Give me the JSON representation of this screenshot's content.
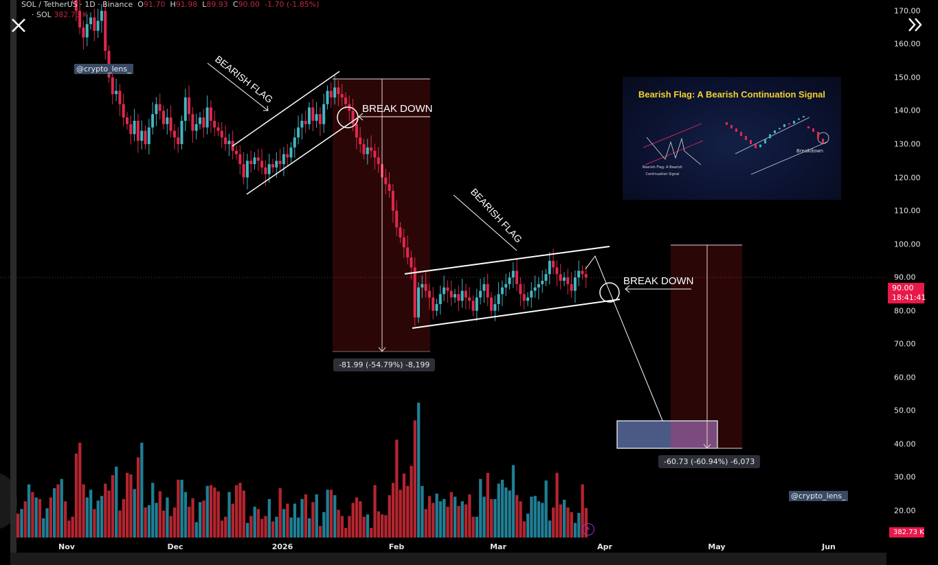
{
  "header": {
    "symbol": "SOL / TetherUS",
    "interval": "1D",
    "exchange": "Binance",
    "o_label": "O",
    "o": "91.70",
    "h_label": "H",
    "h": "91.98",
    "l_label": "L",
    "l": "89.93",
    "c_label": "C",
    "c": "90.00",
    "change": "-1.70 (-1.85%)",
    "vol_label": "· SOL",
    "vol": "382.73 K"
  },
  "last_price": {
    "value": "90.00",
    "countdown": "18:41:41"
  },
  "last_volume": "382.73 K",
  "watermark": "@crypto_lens_",
  "annotations": {
    "flag1_label": "BEARISH FLAG",
    "flag2_label": "BEARISH FLAG",
    "breakdown1_label": "BREAK DOWN",
    "breakdown2_label": "BREAK DOWN",
    "measure1": "-81.99 (-54.79%) -8,199",
    "measure2": "-60.73 (-60.94%) -6,073"
  },
  "inset": {
    "title": "Bearish Flag: A Bearish Continuation Signal",
    "caption_line1": "Bearish Flag: A Bearish",
    "caption_line2": "Continuation Signal",
    "breakdown": "Breakdown"
  },
  "icons": {
    "close": "close-icon",
    "expand": "double-chevron-right-icon",
    "alert": "lightning-icon"
  },
  "colors": {
    "up": "#42b6c1",
    "down": "#e0284f",
    "vol_up": "#1f7f95",
    "vol_down": "#b3252f",
    "accent": "#e8194a",
    "inset_title": "#f2d22e"
  },
  "chart_data": {
    "type": "candlestick",
    "price_ticks": [
      "170.00",
      "160.00",
      "150.00",
      "140.00",
      "130.00",
      "120.00",
      "110.00",
      "100.00",
      "90.00",
      "80.00",
      "70.00",
      "60.00",
      "50.00",
      "40.00",
      "30.00",
      "20.00"
    ],
    "time_ticks": [
      "Nov",
      "Dec",
      "2026",
      "Feb",
      "Mar",
      "Apr",
      "May",
      "Jun"
    ],
    "ylim": [
      12,
      173
    ],
    "close": [
      188,
      190,
      186,
      189,
      185,
      187,
      183,
      185,
      186,
      182,
      184,
      180,
      181,
      179,
      178,
      174,
      170,
      165,
      162,
      166,
      168,
      164,
      167,
      170,
      158,
      150,
      145,
      146,
      142,
      138,
      136,
      133,
      137,
      131,
      134,
      130,
      135,
      139,
      142,
      140,
      136,
      138,
      134,
      132,
      130,
      137,
      144,
      139,
      134,
      136,
      138,
      135,
      141,
      137,
      135,
      134,
      132,
      130,
      131,
      128,
      127,
      124,
      120,
      125,
      124,
      126,
      125,
      123,
      121,
      124,
      123,
      125,
      124,
      127,
      126,
      129,
      132,
      135,
      137,
      136,
      141,
      137,
      139,
      136,
      142,
      146,
      144,
      147,
      145,
      144,
      142,
      140,
      136,
      132,
      130,
      127,
      129,
      128,
      126,
      124,
      120,
      118,
      116,
      110,
      105,
      102,
      99,
      96,
      93,
      78,
      87,
      88,
      86,
      84,
      80,
      82,
      85,
      87,
      86,
      84,
      85,
      83,
      86,
      84,
      83,
      80,
      84,
      86,
      88,
      84,
      80,
      82,
      85,
      87,
      88,
      90,
      92,
      88,
      85,
      83,
      84,
      86,
      87,
      88,
      89,
      91,
      95,
      93,
      91,
      89,
      90,
      88,
      86,
      90,
      92,
      91,
      90
    ],
    "volume_k": [
      310,
      370,
      470,
      690,
      590,
      520,
      500,
      250,
      380,
      520,
      640,
      690,
      760,
      470,
      220,
      270,
      1090,
      1230,
      690,
      520,
      620,
      370,
      480,
      540,
      700,
      610,
      810,
      920,
      350,
      500,
      840,
      820,
      630,
      1040,
      1230,
      390,
      420,
      710,
      450,
      600,
      350,
      520,
      280,
      390,
      750,
      750,
      590,
      400,
      510,
      200,
      460,
      480,
      670,
      680,
      650,
      600,
      220,
      270,
      590,
      440,
      680,
      710,
      610,
      190,
      280,
      400,
      370,
      240,
      280,
      500,
      210,
      270,
      640,
      370,
      440,
      260,
      440,
      260,
      500,
      560,
      250,
      460,
      560,
      150,
      330,
      620,
      620,
      550,
      360,
      280,
      125,
      280,
      450,
      520,
      470,
      270,
      300,
      125,
      680,
      340,
      300,
      290,
      550,
      710,
      1270,
      620,
      830,
      670,
      930,
      1520,
      1750,
      670,
      370,
      540,
      450,
      570,
      470,
      500,
      400,
      590,
      530,
      410,
      470,
      430,
      560,
      270,
      270,
      760,
      530,
      840,
      500,
      500,
      700,
      750,
      650,
      610,
      940,
      550,
      470,
      210,
      310,
      530,
      540,
      470,
      450,
      740,
      220,
      390,
      840,
      430,
      490,
      390,
      330,
      190,
      320,
      690,
      383
    ]
  }
}
